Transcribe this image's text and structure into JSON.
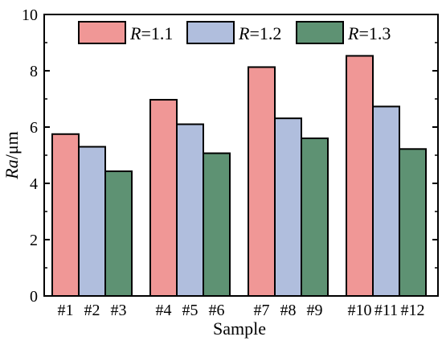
{
  "chart_data": {
    "type": "bar",
    "title": "",
    "xlabel": "Sample",
    "ylabel_italic": "Ra",
    "ylabel_unit": "/μm",
    "ylim": [
      0,
      10
    ],
    "yticks": [
      "0",
      "2",
      "4",
      "6",
      "8",
      "10"
    ],
    "grid": false,
    "legend_position": "top",
    "groups": [
      {
        "labels": [
          "#1",
          "#2",
          "#3"
        ],
        "values": [
          5.75,
          5.3,
          4.43
        ]
      },
      {
        "labels": [
          "#4",
          "#5",
          "#6"
        ],
        "values": [
          6.97,
          6.1,
          5.07
        ]
      },
      {
        "labels": [
          "#7",
          "#8",
          "#9"
        ],
        "values": [
          8.13,
          6.31,
          5.6
        ]
      },
      {
        "labels": [
          "#10",
          "#11",
          "#12"
        ],
        "values": [
          8.53,
          6.73,
          5.22
        ]
      }
    ],
    "series": [
      {
        "name_prefix": "R",
        "name_suffix": "=1.1",
        "color": "#f09796",
        "values": [
          5.75,
          6.97,
          8.13,
          8.53
        ]
      },
      {
        "name_prefix": "R",
        "name_suffix": "=1.2",
        "color": "#b0bedd",
        "values": [
          5.3,
          6.1,
          6.31,
          6.73
        ]
      },
      {
        "name_prefix": "R",
        "name_suffix": "=1.3",
        "color": "#5e9273",
        "values": [
          4.43,
          5.07,
          5.6,
          5.22
        ]
      }
    ]
  }
}
